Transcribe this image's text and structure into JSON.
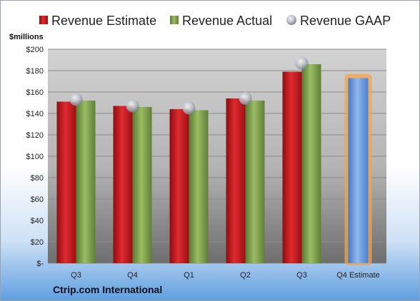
{
  "company": "Ctrip.com International",
  "chart_data": {
    "type": "bar",
    "ylabel": "$millions",
    "ylim": [
      0,
      200
    ],
    "ytick_step": 20,
    "ytick_labels": [
      "$-",
      "$20",
      "$40",
      "$60",
      "$80",
      "$100",
      "$120",
      "$140",
      "$160",
      "$180",
      "$200"
    ],
    "grid": true,
    "legend_position": "top",
    "categories": [
      "Q3",
      "Q4",
      "Q1",
      "Q2",
      "Q3",
      "Q4 Estimate"
    ],
    "series": [
      {
        "name": "Revenue Estimate",
        "kind": "bar",
        "color": "#c0161b",
        "values": [
          151,
          147,
          144,
          154,
          179,
          null
        ]
      },
      {
        "name": "Revenue Actual",
        "kind": "bar",
        "color": "#7a9b47",
        "values": [
          152,
          146,
          143,
          152,
          186,
          null
        ]
      },
      {
        "name": "Revenue GAAP",
        "kind": "marker",
        "color": "#b8bcc6",
        "values": [
          153,
          147,
          145,
          154,
          187,
          null
        ]
      },
      {
        "name": "Q4 Estimate",
        "kind": "bar",
        "color": "#6d9be0",
        "highlight": "#f2a44a",
        "values": [
          null,
          null,
          null,
          null,
          null,
          173
        ]
      }
    ]
  }
}
